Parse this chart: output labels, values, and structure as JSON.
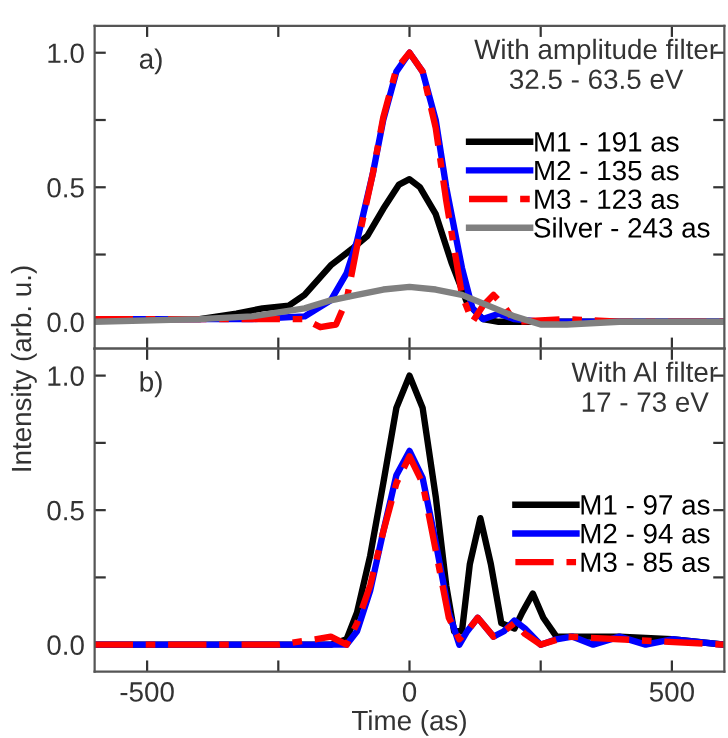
{
  "chart_data": [
    {
      "type": "line",
      "ylabel": "Intensity (arb. u.)",
      "annotations": [
        "a)",
        "With amplitude filter\n32.5 - 63.5 eV"
      ],
      "legend": "right",
      "tick_labels": "y",
      "xlim": [
        -600,
        600
      ],
      "xticks": [
        {
          "value": -500,
          "label": null
        },
        {
          "value": -250,
          "label": null
        },
        {
          "value": 0,
          "label": null
        },
        {
          "value": 250,
          "label": null
        },
        {
          "value": 500,
          "label": null
        }
      ],
      "ylim": [
        -0.1,
        1.1
      ],
      "yticks": [
        {
          "value": 0,
          "label": "0.0"
        },
        {
          "value": 0.25,
          "label": null
        },
        {
          "value": 0.5,
          "label": "0.5"
        },
        {
          "value": 0.75,
          "label": null
        },
        {
          "value": 1.0,
          "label": "1.0"
        }
      ],
      "series": [
        {
          "name": "M1 - 191 as",
          "color": "#000000",
          "line_style": "solid",
          "x": [
            -600,
            -400,
            -330,
            -280,
            -230,
            -200,
            -150,
            -110,
            -80,
            -50,
            -20,
            0,
            20,
            50,
            80,
            110,
            140,
            170,
            250,
            400,
            600
          ],
          "values": [
            0.01,
            0.01,
            0.03,
            0.05,
            0.06,
            0.1,
            0.21,
            0.27,
            0.32,
            0.42,
            0.51,
            0.53,
            0.5,
            0.4,
            0.22,
            0.07,
            0.01,
            0.0,
            0.0,
            0.0,
            0.0
          ]
        },
        {
          "name": "M2 - 135 as",
          "color": "#0000ff",
          "line_style": "solid",
          "x": [
            -600,
            -300,
            -200,
            -150,
            -120,
            -100,
            -70,
            -50,
            -25,
            0,
            25,
            50,
            70,
            100,
            120,
            140,
            170,
            200,
            250,
            400,
            600
          ],
          "values": [
            0.01,
            0.01,
            0.02,
            0.08,
            0.18,
            0.3,
            0.55,
            0.75,
            0.93,
            1.0,
            0.93,
            0.75,
            0.5,
            0.2,
            0.05,
            0.01,
            0.03,
            0.01,
            0.0,
            0.0,
            0.0
          ]
        },
        {
          "name": "M3 - 123 as",
          "color": "#ff0000",
          "line_style": "dashed",
          "x": [
            -600,
            -300,
            -200,
            -170,
            -140,
            -120,
            -100,
            -70,
            -50,
            -25,
            0,
            25,
            50,
            70,
            100,
            120,
            140,
            160,
            180,
            200,
            300,
            400,
            600
          ],
          "values": [
            0.01,
            0.01,
            0.01,
            -0.02,
            -0.01,
            0.08,
            0.28,
            0.55,
            0.76,
            0.94,
            1.0,
            0.93,
            0.72,
            0.45,
            0.1,
            0.0,
            0.06,
            0.1,
            0.06,
            0.0,
            0.01,
            0.0,
            0.0
          ]
        },
        {
          "name": "Silver - 243 as",
          "color": "#808080",
          "line_style": "solid",
          "x": [
            -600,
            -400,
            -300,
            -200,
            -150,
            -100,
            -50,
            0,
            50,
            100,
            150,
            200,
            250,
            300,
            400,
            600
          ],
          "values": [
            0.0,
            0.01,
            0.02,
            0.05,
            0.08,
            0.1,
            0.12,
            0.13,
            0.12,
            0.1,
            0.06,
            0.02,
            -0.01,
            -0.01,
            0.0,
            0.0
          ]
        }
      ]
    },
    {
      "type": "line",
      "xlabel": "Time (as)",
      "annotations": [
        "b)",
        "With Al filter\n17 - 73 eV"
      ],
      "legend": "right",
      "xlim": [
        -600,
        600
      ],
      "xticks": [
        -500,
        {
          "value": -250,
          "label": null
        },
        0,
        {
          "value": 250,
          "label": null
        },
        500
      ],
      "ylim": [
        -0.1,
        1.1
      ],
      "yticks": [
        {
          "value": 0,
          "label": "0.0"
        },
        {
          "value": 0.25,
          "label": null
        },
        {
          "value": 0.5,
          "label": "0.5"
        },
        {
          "value": 0.75,
          "label": null
        },
        {
          "value": 1.0,
          "label": "1.0"
        }
      ],
      "series": [
        {
          "name": "M1 - 97 as",
          "color": "#000000",
          "line_style": "solid",
          "x": [
            -600,
            -150,
            -120,
            -100,
            -75,
            -50,
            -25,
            0,
            25,
            50,
            70,
            85,
            100,
            115,
            135,
            155,
            175,
            200,
            215,
            235,
            255,
            280,
            320,
            400,
            500,
            600
          ],
          "values": [
            0.0,
            0.0,
            0.02,
            0.12,
            0.33,
            0.6,
            0.88,
            1.0,
            0.88,
            0.55,
            0.22,
            0.05,
            0.05,
            0.3,
            0.47,
            0.3,
            0.08,
            0.06,
            0.12,
            0.19,
            0.1,
            0.03,
            0.03,
            0.03,
            0.02,
            0.0
          ]
        },
        {
          "name": "M2 - 94 as",
          "color": "#0000ff",
          "line_style": "solid",
          "x": [
            -600,
            -120,
            -100,
            -75,
            -50,
            -25,
            0,
            25,
            50,
            75,
            95,
            110,
            130,
            160,
            180,
            200,
            220,
            250,
            280,
            310,
            350,
            400,
            450,
            500,
            600
          ],
          "values": [
            0.0,
            0.0,
            0.05,
            0.2,
            0.42,
            0.63,
            0.72,
            0.62,
            0.38,
            0.12,
            0.0,
            0.05,
            0.1,
            0.03,
            0.05,
            0.09,
            0.06,
            0.0,
            0.02,
            0.03,
            0.0,
            0.03,
            0.0,
            0.02,
            0.0
          ]
        },
        {
          "name": "M3 - 85 as",
          "color": "#ff0000",
          "line_style": "dashed",
          "x": [
            -600,
            -250,
            -180,
            -150,
            -120,
            -100,
            -75,
            -50,
            -25,
            0,
            25,
            50,
            75,
            95,
            110,
            130,
            160,
            180,
            200,
            220,
            250,
            300,
            400,
            600
          ],
          "values": [
            0.0,
            0.0,
            0.02,
            0.03,
            0.0,
            0.08,
            0.22,
            0.42,
            0.6,
            0.7,
            0.6,
            0.35,
            0.1,
            0.02,
            0.05,
            0.1,
            0.03,
            0.05,
            0.08,
            0.04,
            0.0,
            0.03,
            0.02,
            0.0
          ]
        }
      ]
    }
  ]
}
